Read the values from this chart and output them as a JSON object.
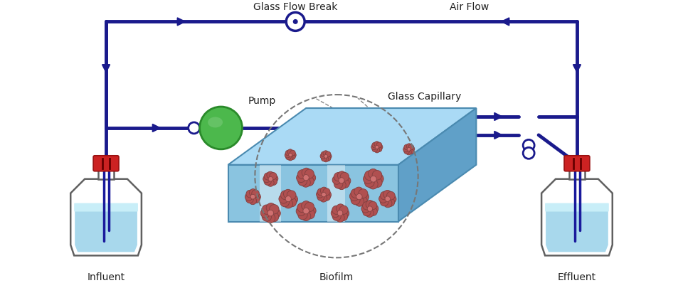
{
  "bg_color": "#ffffff",
  "labels": {
    "glass_flow_break": "Glass Flow Break",
    "air_flow": "Air Flow",
    "pump": "Pump",
    "glass_capillary": "Glass Capillary",
    "influent": "Influent",
    "biofilm": "Biofilm",
    "effluent": "Effluent"
  },
  "colors": {
    "pump_green": "#4cb84c",
    "pump_dark": "#2a8a2a",
    "bottle_outline": "#606060",
    "bottle_water": "#a8d8ec",
    "bottle_water_top": "#c8eef8",
    "capillary_fill": "#b0cfe0",
    "capillary_stroke": "#7090a0",
    "capillary_gray": "#9090a0",
    "red_clamp": "#cc2222",
    "dark_blue": "#1a1a8c",
    "biofilm_front": "#8ac4e0",
    "biofilm_top": "#aadaf5",
    "biofilm_right": "#60a0c8",
    "biofilm_stripe": "#d0eaf8",
    "biofilm_bacteria_dark": "#804040",
    "biofilm_bacteria_mid": "#b05050",
    "biofilm_bacteria_light": "#d07070"
  }
}
